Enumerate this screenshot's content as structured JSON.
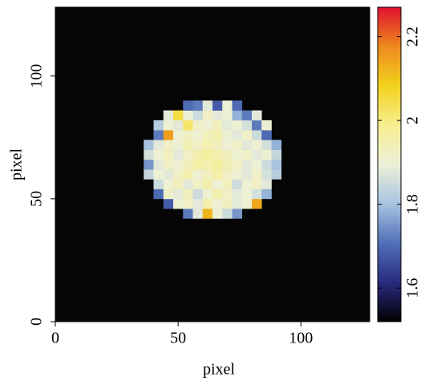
{
  "chart_data": {
    "type": "heatmap",
    "xlabel": "pixel",
    "ylabel": "pixel",
    "xlim": [
      0,
      128
    ],
    "ylim": [
      0,
      128
    ],
    "xticks": [
      0,
      50,
      100
    ],
    "yticks": [
      0,
      50,
      100
    ],
    "x": [
      38,
      42,
      46,
      50,
      54,
      58,
      62,
      66,
      70,
      74,
      78,
      82,
      86,
      90
    ],
    "y": [
      44,
      48,
      52,
      56,
      60,
      64,
      68,
      72,
      76,
      80,
      84,
      88
    ],
    "z": [
      [
        null,
        null,
        null,
        null,
        1.72,
        1.88,
        2.12,
        1.9,
        1.85,
        1.75,
        null,
        null,
        null,
        null
      ],
      [
        null,
        null,
        1.68,
        1.9,
        1.92,
        1.88,
        1.95,
        1.9,
        1.93,
        1.88,
        1.9,
        2.14,
        null,
        null
      ],
      [
        null,
        1.7,
        1.92,
        1.88,
        1.93,
        1.85,
        1.9,
        1.95,
        1.92,
        1.88,
        1.9,
        1.86,
        1.78,
        null
      ],
      [
        null,
        1.85,
        1.9,
        1.93,
        1.88,
        1.92,
        1.95,
        1.9,
        1.93,
        1.85,
        1.9,
        1.92,
        1.88,
        null
      ],
      [
        1.84,
        1.9,
        1.88,
        1.92,
        1.95,
        1.9,
        1.93,
        1.96,
        1.92,
        1.9,
        1.88,
        1.92,
        1.86,
        1.82
      ],
      [
        1.75,
        1.88,
        1.92,
        1.9,
        1.93,
        1.96,
        1.95,
        1.97,
        1.94,
        1.92,
        1.88,
        1.9,
        1.85,
        1.8
      ],
      [
        1.86,
        1.9,
        1.93,
        1.88,
        1.92,
        1.95,
        1.97,
        1.95,
        1.93,
        1.9,
        1.92,
        1.88,
        1.9,
        1.84
      ],
      [
        1.8,
        1.88,
        1.92,
        1.9,
        1.94,
        1.92,
        1.95,
        1.93,
        1.9,
        1.92,
        1.88,
        1.9,
        1.86,
        1.78
      ],
      [
        null,
        1.72,
        2.15,
        1.9,
        1.92,
        1.9,
        1.93,
        1.95,
        1.9,
        1.88,
        1.92,
        1.85,
        1.7,
        null
      ],
      [
        null,
        1.82,
        1.9,
        1.88,
        2.02,
        1.92,
        1.9,
        1.93,
        1.88,
        1.9,
        1.86,
        1.72,
        1.9,
        null
      ],
      [
        null,
        null,
        1.88,
        2.05,
        1.9,
        1.85,
        1.92,
        1.88,
        1.9,
        1.78,
        1.72,
        1.88,
        null,
        null
      ],
      [
        null,
        null,
        null,
        null,
        1.7,
        1.72,
        1.88,
        1.68,
        1.9,
        1.7,
        null,
        null,
        null,
        null
      ]
    ],
    "clim": [
      1.52,
      2.27
    ],
    "cticks": [
      1.6,
      1.8,
      2,
      2.2
    ],
    "colormap": [
      "#000000",
      "#2a2a80",
      "#5070b8",
      "#a8c4e0",
      "#eef0d8",
      "#f6ee90",
      "#f2d21c",
      "#ee8a1e",
      "#e01030"
    ],
    "background": "#050505"
  }
}
